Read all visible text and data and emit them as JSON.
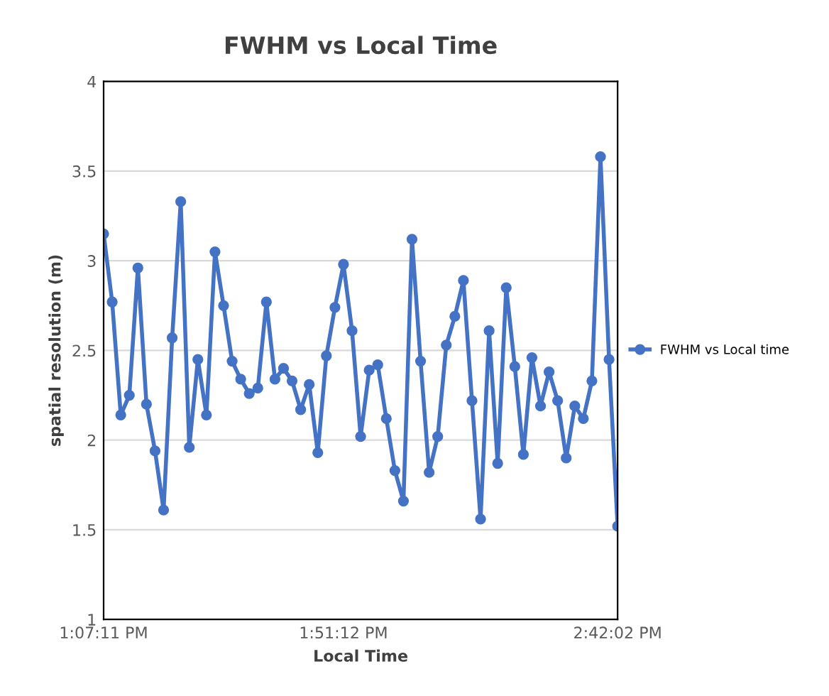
{
  "chart_data": {
    "type": "line",
    "title": "FWHM vs Local Time",
    "xlabel": "Local Time",
    "ylabel": "spatial resolution (m)",
    "categories": [
      "1:07:11 PM",
      null,
      null,
      null,
      null,
      null,
      null,
      null,
      null,
      null,
      null,
      null,
      null,
      null,
      null,
      null,
      null,
      null,
      null,
      null,
      null,
      null,
      null,
      null,
      null,
      null,
      null,
      null,
      "1:51:12 PM",
      null,
      null,
      null,
      null,
      null,
      null,
      null,
      null,
      null,
      null,
      null,
      null,
      null,
      null,
      null,
      null,
      null,
      null,
      null,
      null,
      null,
      null,
      null,
      null,
      null,
      null,
      null,
      null,
      null,
      null,
      null,
      "2:42:02 PM"
    ],
    "series": [
      {
        "name": "FWHM vs Local time",
        "color": "#4472c4",
        "values": [
          3.15,
          2.77,
          2.14,
          2.25,
          2.96,
          2.2,
          1.94,
          1.61,
          2.57,
          3.33,
          1.96,
          2.45,
          2.14,
          3.05,
          2.75,
          2.44,
          2.34,
          2.26,
          2.29,
          2.77,
          2.34,
          2.4,
          2.33,
          2.17,
          2.31,
          1.93,
          2.47,
          2.74,
          2.98,
          2.61,
          2.02,
          2.39,
          2.42,
          2.12,
          1.83,
          1.66,
          3.12,
          2.44,
          1.82,
          2.02,
          2.53,
          2.69,
          2.89,
          2.22,
          1.56,
          2.61,
          1.87,
          2.85,
          2.41,
          1.92,
          2.46,
          2.19,
          2.38,
          2.22,
          1.9,
          2.19,
          2.12,
          2.33,
          3.58,
          2.45,
          1.52
        ]
      }
    ],
    "ylim": [
      1,
      4
    ],
    "yticks": [
      1,
      1.5,
      2,
      2.5,
      3,
      3.5,
      4
    ],
    "grid": "y",
    "legend": "right",
    "marker": "circle",
    "line_style": "solid"
  }
}
